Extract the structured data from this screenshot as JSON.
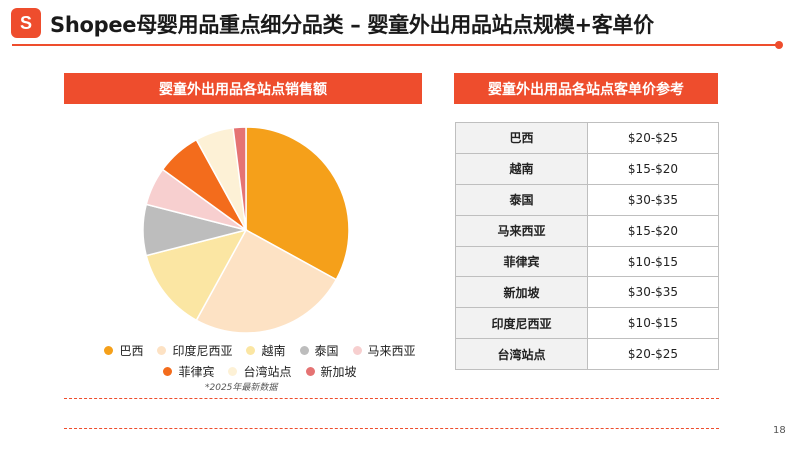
{
  "logo": {
    "letter": "S"
  },
  "title": "Shopee母婴用品重点细分品类 – 婴童外出用品站点规模+客单价",
  "colors": {
    "accent": "#ee4d2d"
  },
  "pie_section": {
    "heading": "婴童外出用品各站点销售额",
    "note": "*2025年最新数据"
  },
  "table_section": {
    "heading": "婴童外出用品各站点客单价参考"
  },
  "chart_data": {
    "type": "pie",
    "title": "婴童外出用品各站点销售额",
    "legend_placement": "bottom",
    "slices": [
      {
        "label": "巴西",
        "value": 33,
        "color": "#f5a01a"
      },
      {
        "label": "印度尼西亚",
        "value": 25,
        "color": "#fde2c4"
      },
      {
        "label": "越南",
        "value": 13,
        "color": "#fbe6a3"
      },
      {
        "label": "泰国",
        "value": 8,
        "color": "#bdbdbd"
      },
      {
        "label": "马来西亚",
        "value": 6,
        "color": "#f7cfcf"
      },
      {
        "label": "菲律宾",
        "value": 7,
        "color": "#f36c1c"
      },
      {
        "label": "台湾站点",
        "value": 6,
        "color": "#fdf1d6"
      },
      {
        "label": "新加坡",
        "value": 2,
        "color": "#e57373"
      }
    ]
  },
  "price_table": {
    "rows": [
      {
        "site": "巴西",
        "price": "$20-$25"
      },
      {
        "site": "越南",
        "price": "$15-$20"
      },
      {
        "site": "泰国",
        "price": "$30-$35"
      },
      {
        "site": "马来西亚",
        "price": "$15-$20"
      },
      {
        "site": "菲律宾",
        "price": "$10-$15"
      },
      {
        "site": "新加坡",
        "price": "$30-$35"
      },
      {
        "site": "印度尼西亚",
        "price": "$10-$15"
      },
      {
        "site": "台湾站点",
        "price": "$20-$25"
      }
    ]
  },
  "page_number": "18"
}
